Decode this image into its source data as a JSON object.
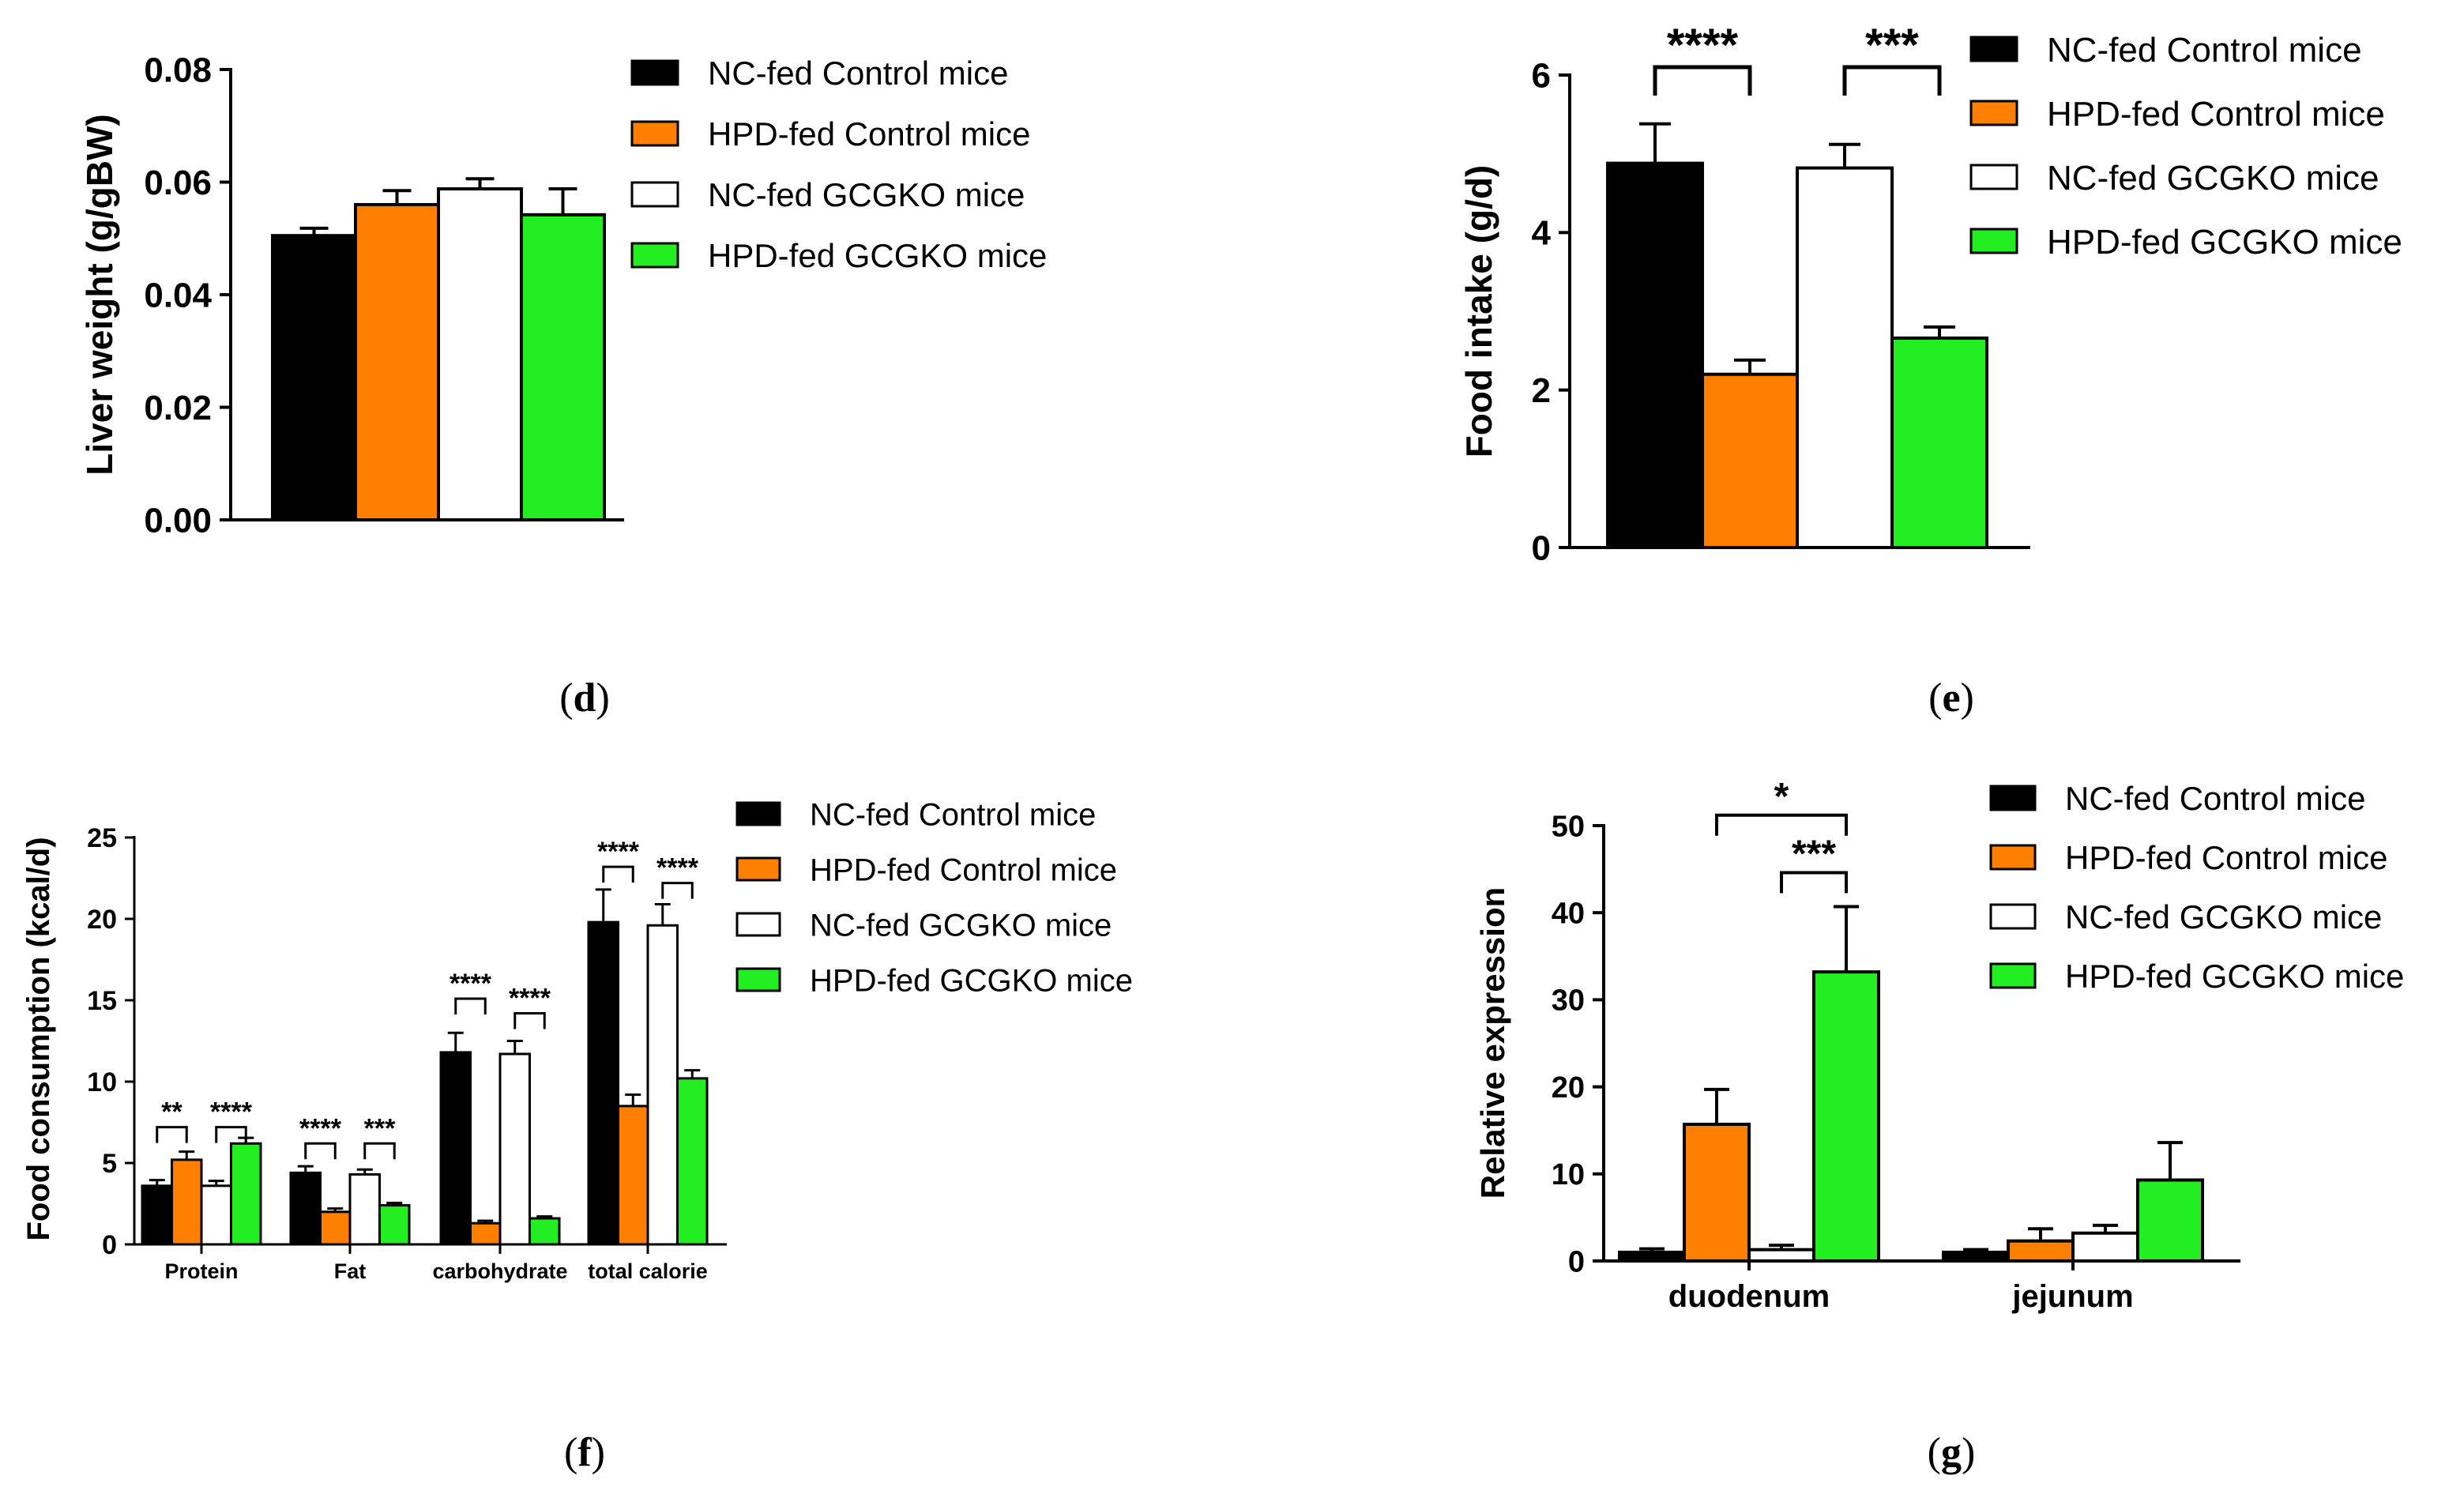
{
  "chart_data": [
    {
      "id": "d",
      "panel_label": "d",
      "type": "bar",
      "ylabel": "Liver weight (g/gBW)",
      "ylim": [
        0,
        0.08
      ],
      "yticks": [
        "0.00",
        "0.02",
        "0.04",
        "0.06",
        "0.08"
      ],
      "ytick_values": [
        0,
        0.02,
        0.04,
        0.06,
        0.08
      ],
      "categories": [
        ""
      ],
      "series": [
        {
          "name": "NC-fed Control mice",
          "color": "#000000",
          "values": [
            0.0505
          ],
          "errors": [
            0.0013
          ]
        },
        {
          "name": "HPD-fed Control mice",
          "color": "#ff7f00",
          "values": [
            0.056
          ],
          "errors": [
            0.0025
          ]
        },
        {
          "name": "NC-fed GCGKO mice",
          "color": "#ffffff",
          "values": [
            0.0588
          ],
          "errors": [
            0.0018
          ]
        },
        {
          "name": "HPD-fed GCGKO mice",
          "color": "#22ee22",
          "values": [
            0.0542
          ],
          "errors": [
            0.0046
          ]
        }
      ],
      "significance": []
    },
    {
      "id": "e",
      "panel_label": "e",
      "type": "bar",
      "ylabel": "Food intake (g/d)",
      "ylim": [
        0,
        6
      ],
      "yticks": [
        "0",
        "2",
        "4",
        "6"
      ],
      "ytick_values": [
        0,
        2,
        4,
        6
      ],
      "categories": [
        ""
      ],
      "series": [
        {
          "name": "NC-fed Control mice",
          "color": "#000000",
          "values": [
            4.88
          ],
          "errors": [
            0.5
          ]
        },
        {
          "name": "HPD-fed Control mice",
          "color": "#ff7f00",
          "values": [
            2.2
          ],
          "errors": [
            0.18
          ]
        },
        {
          "name": "NC-fed GCGKO mice",
          "color": "#ffffff",
          "values": [
            4.82
          ],
          "errors": [
            0.3
          ]
        },
        {
          "name": "HPD-fed GCGKO mice",
          "color": "#22ee22",
          "values": [
            2.66
          ],
          "errors": [
            0.14
          ]
        }
      ],
      "significance": [
        {
          "category": 0,
          "from": 0,
          "to": 1,
          "y": 6.1,
          "label": "****"
        },
        {
          "category": 0,
          "from": 2,
          "to": 3,
          "y": 6.1,
          "label": "***"
        }
      ]
    },
    {
      "id": "f",
      "panel_label": "f",
      "type": "bar",
      "ylabel": "Food consumption (kcal/d)",
      "ylim": [
        0,
        25
      ],
      "yticks": [
        "0",
        "5",
        "10",
        "15",
        "20",
        "25"
      ],
      "ytick_values": [
        0,
        5,
        10,
        15,
        20,
        25
      ],
      "categories": [
        "Protein",
        "Fat",
        "carbohydrate",
        "total calorie"
      ],
      "series": [
        {
          "name": "NC-fed Control mice",
          "color": "#000000",
          "values": [
            3.6,
            4.4,
            11.8,
            19.8
          ],
          "errors": [
            0.35,
            0.4,
            1.2,
            2.0
          ]
        },
        {
          "name": "HPD-fed Control mice",
          "color": "#ff7f00",
          "values": [
            5.2,
            2.0,
            1.3,
            8.5
          ],
          "errors": [
            0.5,
            0.2,
            0.15,
            0.7
          ]
        },
        {
          "name": "NC-fed GCGKO mice",
          "color": "#ffffff",
          "values": [
            3.6,
            4.3,
            11.7,
            19.6
          ],
          "errors": [
            0.3,
            0.3,
            0.8,
            1.3
          ]
        },
        {
          "name": "HPD-fed GCGKO mice",
          "color": "#22ee22",
          "values": [
            6.2,
            2.4,
            1.6,
            10.2
          ],
          "errors": [
            0.35,
            0.15,
            0.12,
            0.5
          ]
        }
      ],
      "significance": [
        {
          "category": 0,
          "from": 0,
          "to": 1,
          "y": 7.2,
          "label": "**"
        },
        {
          "category": 0,
          "from": 2,
          "to": 3,
          "y": 7.2,
          "label": "****"
        },
        {
          "category": 1,
          "from": 0,
          "to": 1,
          "y": 6.2,
          "label": "****"
        },
        {
          "category": 1,
          "from": 2,
          "to": 3,
          "y": 6.2,
          "label": "***"
        },
        {
          "category": 2,
          "from": 0,
          "to": 1,
          "y": 15.1,
          "label": "****"
        },
        {
          "category": 2,
          "from": 2,
          "to": 3,
          "y": 14.2,
          "label": "****"
        },
        {
          "category": 3,
          "from": 0,
          "to": 1,
          "y": 23.2,
          "label": "****"
        },
        {
          "category": 3,
          "from": 2,
          "to": 3,
          "y": 22.2,
          "label": "****"
        }
      ]
    },
    {
      "id": "g",
      "panel_label": "g",
      "type": "bar",
      "ylabel": "Relative expression",
      "ylim": [
        0,
        50
      ],
      "yticks": [
        "0",
        "10",
        "20",
        "30",
        "40",
        "50"
      ],
      "ytick_values": [
        0,
        10,
        20,
        30,
        40,
        50
      ],
      "categories": [
        "duodenum",
        "jejunum"
      ],
      "series": [
        {
          "name": "NC-fed Control mice",
          "color": "#000000",
          "values": [
            1.0,
            1.0
          ],
          "errors": [
            0.4,
            0.3
          ]
        },
        {
          "name": "HPD-fed Control mice",
          "color": "#ff7f00",
          "values": [
            15.7,
            2.3
          ],
          "errors": [
            4.0,
            1.4
          ]
        },
        {
          "name": "NC-fed GCGKO mice",
          "color": "#ffffff",
          "values": [
            1.3,
            3.2
          ],
          "errors": [
            0.5,
            0.9
          ]
        },
        {
          "name": "HPD-fed GCGKO mice",
          "color": "#22ee22",
          "values": [
            33.2,
            9.3
          ],
          "errors": [
            7.5,
            4.3
          ]
        }
      ],
      "significance": [
        {
          "category": 0,
          "from": 1,
          "to": 3,
          "y": 51.2,
          "label": "*"
        },
        {
          "category": 0,
          "from": 2,
          "to": 3,
          "y": 44.6,
          "label": "***"
        }
      ]
    }
  ]
}
